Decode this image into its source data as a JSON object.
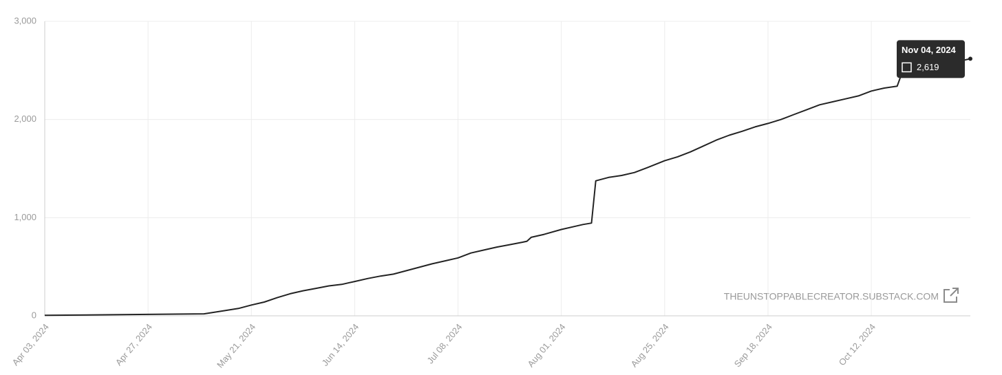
{
  "chart_data": {
    "type": "line",
    "x": [
      "2024-04-03",
      "2024-04-27",
      "2024-05-10",
      "2024-05-15",
      "2024-05-18",
      "2024-05-21",
      "2024-05-24",
      "2024-05-27",
      "2024-05-30",
      "2024-06-02",
      "2024-06-05",
      "2024-06-08",
      "2024-06-11",
      "2024-06-14",
      "2024-06-17",
      "2024-06-20",
      "2024-06-23",
      "2024-06-26",
      "2024-06-29",
      "2024-07-02",
      "2024-07-05",
      "2024-07-08",
      "2024-07-11",
      "2024-07-14",
      "2024-07-17",
      "2024-07-20",
      "2024-07-23",
      "2024-07-24",
      "2024-07-25",
      "2024-07-28",
      "2024-08-01",
      "2024-08-04",
      "2024-08-06",
      "2024-08-08",
      "2024-08-09",
      "2024-08-12",
      "2024-08-15",
      "2024-08-18",
      "2024-08-21",
      "2024-08-25",
      "2024-08-28",
      "2024-08-31",
      "2024-09-03",
      "2024-09-06",
      "2024-09-09",
      "2024-09-12",
      "2024-09-15",
      "2024-09-18",
      "2024-09-21",
      "2024-09-24",
      "2024-09-27",
      "2024-09-30",
      "2024-10-03",
      "2024-10-06",
      "2024-10-09",
      "2024-10-12",
      "2024-10-15",
      "2024-10-18",
      "2024-10-19",
      "2024-10-22",
      "2024-10-25",
      "2024-10-28",
      "2024-11-01",
      "2024-11-04"
    ],
    "series": [
      {
        "color": "#222222",
        "values": [
          5,
          15,
          20,
          55,
          75,
          110,
          140,
          185,
          225,
          255,
          280,
          305,
          320,
          350,
          380,
          405,
          425,
          460,
          495,
          530,
          560,
          590,
          640,
          670,
          700,
          725,
          750,
          760,
          800,
          830,
          880,
          910,
          930,
          945,
          1375,
          1410,
          1430,
          1460,
          1510,
          1580,
          1620,
          1670,
          1730,
          1790,
          1840,
          1880,
          1925,
          1960,
          2000,
          2050,
          2100,
          2150,
          2180,
          2210,
          2240,
          2290,
          2320,
          2340,
          2460,
          2490,
          2530,
          2555,
          2590,
          2619
        ]
      }
    ],
    "xlim": [
      "2024-04-03",
      "2024-11-04"
    ],
    "xticks": [
      {
        "value": "2024-04-03",
        "label": "Apr 03, 2024"
      },
      {
        "value": "2024-04-27",
        "label": "Apr 27, 2024"
      },
      {
        "value": "2024-05-21",
        "label": "May 21, 2024"
      },
      {
        "value": "2024-06-14",
        "label": "Jun 14, 2024"
      },
      {
        "value": "2024-07-08",
        "label": "Jul 08, 2024"
      },
      {
        "value": "2024-08-01",
        "label": "Aug 01, 2024"
      },
      {
        "value": "2024-08-25",
        "label": "Aug 25, 2024"
      },
      {
        "value": "2024-09-18",
        "label": "Sep 18, 2024"
      },
      {
        "value": "2024-10-12",
        "label": "Oct 12, 2024"
      }
    ],
    "ylim": [
      0,
      3000
    ],
    "yticks": [
      0,
      {
        "value": 1000,
        "label": "1,000"
      },
      {
        "value": 2000,
        "label": "2,000"
      },
      {
        "value": 3000,
        "label": "3,000"
      }
    ],
    "grid": true,
    "watermark": "THEUNSTOPPABLECREATOR.SUBSTACK.COM",
    "tooltip": {
      "title": "Nov 04, 2024",
      "label": "2,619"
    }
  }
}
